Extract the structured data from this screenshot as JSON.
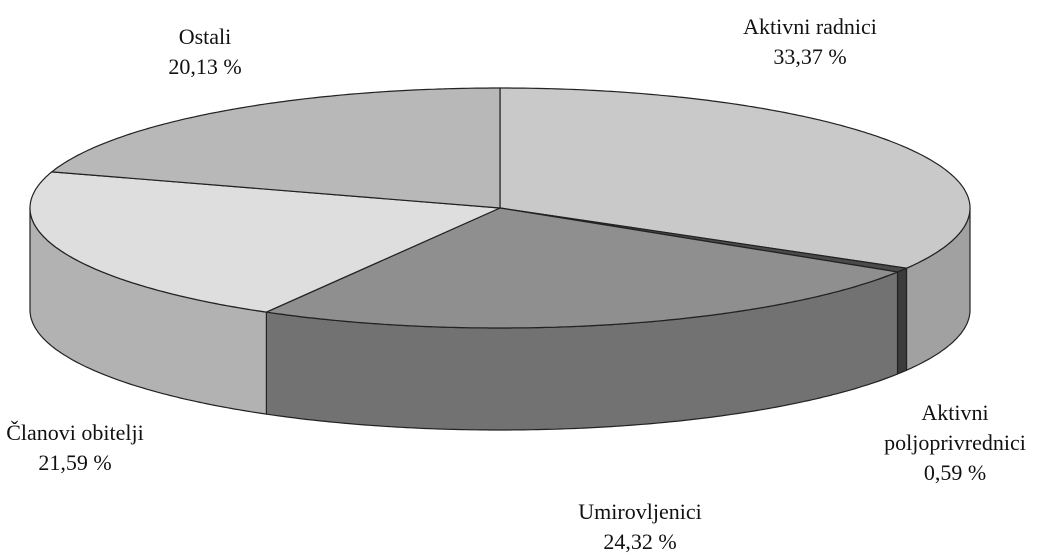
{
  "chart_data": {
    "type": "pie",
    "categories": [
      "Aktivni radnici",
      "Aktivni poljoprivrednici",
      "Umirovljenici",
      "Članovi obitelji",
      "Ostali"
    ],
    "values": [
      33.37,
      0.59,
      24.32,
      21.59,
      20.13
    ],
    "value_labels": [
      "33,37 %",
      "0,59 %",
      "24,32 %",
      "21,59 %",
      "20,13 %"
    ],
    "colors": [
      "#c9c9c9",
      "#4a4a4a",
      "#8f8f8f",
      "#dedede",
      "#b8b8b8"
    ]
  }
}
